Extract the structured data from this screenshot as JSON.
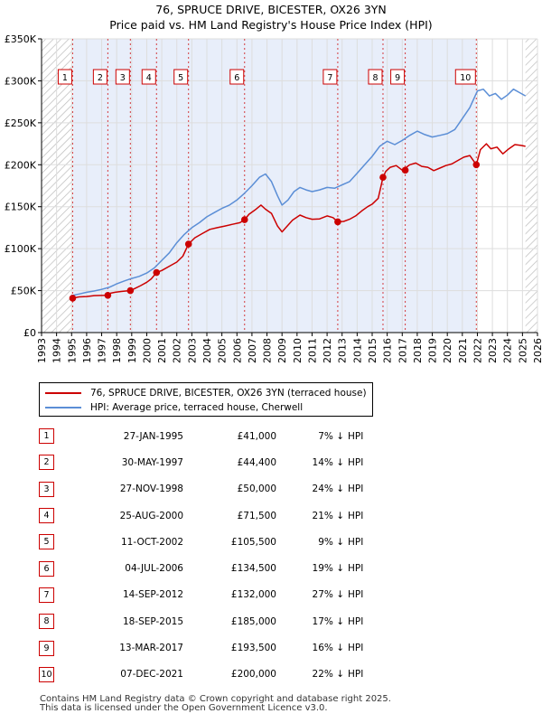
{
  "chart_data": {
    "type": "line",
    "title": "76, SPRUCE DRIVE, BICESTER, OX26 3YN",
    "subtitle": "Price paid vs. HM Land Registry's House Price Index (HPI)",
    "xlabel": "",
    "ylabel": "",
    "xlim": [
      1993,
      2026
    ],
    "ylim": [
      0,
      350000
    ],
    "x_ticks": [
      "1993",
      "1994",
      "1995",
      "1996",
      "1997",
      "1998",
      "1999",
      "2000",
      "2001",
      "2002",
      "2003",
      "2004",
      "2005",
      "2006",
      "2007",
      "2008",
      "2009",
      "2010",
      "2011",
      "2012",
      "2013",
      "2014",
      "2015",
      "2016",
      "2017",
      "2018",
      "2019",
      "2020",
      "2021",
      "2022",
      "2023",
      "2024",
      "2025",
      "2026"
    ],
    "y_ticks": [
      {
        "value": 0,
        "label": "£0"
      },
      {
        "value": 50000,
        "label": "£50K"
      },
      {
        "value": 100000,
        "label": "£100K"
      },
      {
        "value": 150000,
        "label": "£150K"
      },
      {
        "value": 200000,
        "label": "£200K"
      },
      {
        "value": 250000,
        "label": "£250K"
      },
      {
        "value": 300000,
        "label": "£300K"
      },
      {
        "value": 350000,
        "label": "£350K"
      }
    ],
    "grid": true,
    "legend_position": "below",
    "shaded_spans": [
      [
        1995.07,
        2021.93
      ]
    ],
    "hatched_spans": [
      [
        1993,
        1995.07
      ],
      [
        2025.2,
        2026
      ]
    ],
    "series": [
      {
        "name": "76, SPRUCE DRIVE, BICESTER, OX26 3YN (terraced house)",
        "color": "#cc0000",
        "x": [
          1995.07,
          1995.5,
          1996.0,
          1996.5,
          1997.0,
          1997.41,
          1997.6,
          1997.9,
          1998.3,
          1998.6,
          1998.91,
          1999.2,
          1999.6,
          2000.0,
          2000.3,
          2000.65,
          2001.0,
          2001.5,
          2002.0,
          2002.4,
          2002.78,
          2003.2,
          2003.7,
          2004.2,
          2004.7,
          2005.2,
          2005.7,
          2006.2,
          2006.51,
          2006.8,
          2007.2,
          2007.6,
          2007.9,
          2008.3,
          2008.7,
          2009.0,
          2009.3,
          2009.7,
          2010.2,
          2010.6,
          2011.0,
          2011.5,
          2012.0,
          2012.4,
          2012.71,
          2013.1,
          2013.5,
          2013.9,
          2014.3,
          2014.7,
          2015.0,
          2015.4,
          2015.72,
          2015.9,
          2016.2,
          2016.6,
          2017.0,
          2017.2,
          2017.5,
          2017.9,
          2018.3,
          2018.7,
          2019.1,
          2019.5,
          2019.9,
          2020.3,
          2020.7,
          2021.1,
          2021.5,
          2021.93,
          2022.2,
          2022.6,
          2022.9,
          2023.3,
          2023.7,
          2024.1,
          2024.5,
          2024.9,
          2025.2
        ],
        "values": [
          41000,
          42500,
          43000,
          44000,
          44300,
          44400,
          47000,
          48000,
          49000,
          49500,
          50000,
          52500,
          56000,
          60000,
          64000,
          71500,
          74000,
          79000,
          84000,
          91000,
          105500,
          113000,
          118000,
          123000,
          125000,
          127000,
          129000,
          131000,
          134500,
          141000,
          146000,
          152000,
          147000,
          142000,
          127000,
          120000,
          126000,
          134000,
          140000,
          137000,
          135000,
          135500,
          139000,
          137000,
          132000,
          132500,
          135000,
          139000,
          145000,
          150000,
          153000,
          160000,
          185000,
          192000,
          197000,
          199000,
          193500,
          196000,
          200000,
          202000,
          198000,
          197000,
          193000,
          196000,
          199000,
          201000,
          205000,
          209000,
          211000,
          200000,
          218000,
          225000,
          219000,
          221000,
          213000,
          219000,
          224000,
          223000,
          222000
        ]
      },
      {
        "name": "HPI: Average price, terraced house, Cherwell",
        "color": "#5b8ed6",
        "x": [
          1995.0,
          1995.5,
          1996.0,
          1996.5,
          1997.0,
          1997.5,
          1998.0,
          1998.5,
          1999.0,
          1999.5,
          2000.0,
          2000.5,
          2001.0,
          2001.5,
          2002.0,
          2002.5,
          2003.0,
          2003.5,
          2004.0,
          2004.5,
          2005.0,
          2005.5,
          2006.0,
          2006.5,
          2007.0,
          2007.5,
          2007.9,
          2008.3,
          2008.7,
          2009.0,
          2009.4,
          2009.8,
          2010.2,
          2010.6,
          2011.0,
          2011.5,
          2012.0,
          2012.5,
          2013.0,
          2013.5,
          2014.0,
          2014.5,
          2015.0,
          2015.5,
          2016.0,
          2016.5,
          2017.0,
          2017.5,
          2018.0,
          2018.5,
          2019.0,
          2019.5,
          2020.0,
          2020.5,
          2021.0,
          2021.5,
          2022.0,
          2022.4,
          2022.8,
          2023.2,
          2023.6,
          2024.0,
          2024.4,
          2024.8,
          2025.2
        ],
        "values": [
          44000,
          46000,
          48000,
          49500,
          51500,
          54000,
          58000,
          61500,
          64500,
          67000,
          71000,
          77000,
          86000,
          95000,
          107000,
          117000,
          125000,
          131000,
          138000,
          143000,
          148000,
          152000,
          158000,
          166000,
          175000,
          185000,
          189000,
          180000,
          163000,
          152000,
          158000,
          168000,
          173000,
          170000,
          168000,
          170000,
          173000,
          172000,
          176000,
          180000,
          190000,
          200000,
          210000,
          222000,
          228000,
          224000,
          229000,
          235000,
          240000,
          236000,
          233000,
          235000,
          237000,
          242000,
          255000,
          268000,
          288000,
          290000,
          282000,
          285000,
          278000,
          283000,
          290000,
          286000,
          282000
        ]
      }
    ],
    "sales": [
      {
        "label": "1",
        "x": 1995.07,
        "price": 41000
      },
      {
        "label": "2",
        "x": 1997.41,
        "price": 44400
      },
      {
        "label": "3",
        "x": 1998.91,
        "price": 50000
      },
      {
        "label": "4",
        "x": 2000.65,
        "price": 71500
      },
      {
        "label": "5",
        "x": 2002.78,
        "price": 105500
      },
      {
        "label": "6",
        "x": 2006.51,
        "price": 134500
      },
      {
        "label": "7",
        "x": 2012.71,
        "price": 132000
      },
      {
        "label": "8",
        "x": 2015.72,
        "price": 185000
      },
      {
        "label": "9",
        "x": 2017.2,
        "price": 193500
      },
      {
        "label": "10",
        "x": 2021.93,
        "price": 200000
      }
    ]
  },
  "table": {
    "rows": [
      {
        "num": "1",
        "date": "27-JAN-1995",
        "price": "£41,000",
        "pct": "7% ↓",
        "hpi": "HPI"
      },
      {
        "num": "2",
        "date": "30-MAY-1997",
        "price": "£44,400",
        "pct": "14% ↓",
        "hpi": "HPI"
      },
      {
        "num": "3",
        "date": "27-NOV-1998",
        "price": "£50,000",
        "pct": "24% ↓",
        "hpi": "HPI"
      },
      {
        "num": "4",
        "date": "25-AUG-2000",
        "price": "£71,500",
        "pct": "21% ↓",
        "hpi": "HPI"
      },
      {
        "num": "5",
        "date": "11-OCT-2002",
        "price": "£105,500",
        "pct": "9% ↓",
        "hpi": "HPI"
      },
      {
        "num": "6",
        "date": "04-JUL-2006",
        "price": "£134,500",
        "pct": "19% ↓",
        "hpi": "HPI"
      },
      {
        "num": "7",
        "date": "14-SEP-2012",
        "price": "£132,000",
        "pct": "27% ↓",
        "hpi": "HPI"
      },
      {
        "num": "8",
        "date": "18-SEP-2015",
        "price": "£185,000",
        "pct": "17% ↓",
        "hpi": "HPI"
      },
      {
        "num": "9",
        "date": "13-MAR-2017",
        "price": "£193,500",
        "pct": "16% ↓",
        "hpi": "HPI"
      },
      {
        "num": "10",
        "date": "07-DEC-2021",
        "price": "£200,000",
        "pct": "22% ↓",
        "hpi": "HPI"
      }
    ]
  },
  "footer": {
    "line1": "Contains HM Land Registry data © Crown copyright and database right 2025.",
    "line2": "This data is licensed under the Open Government Licence v3.0."
  }
}
